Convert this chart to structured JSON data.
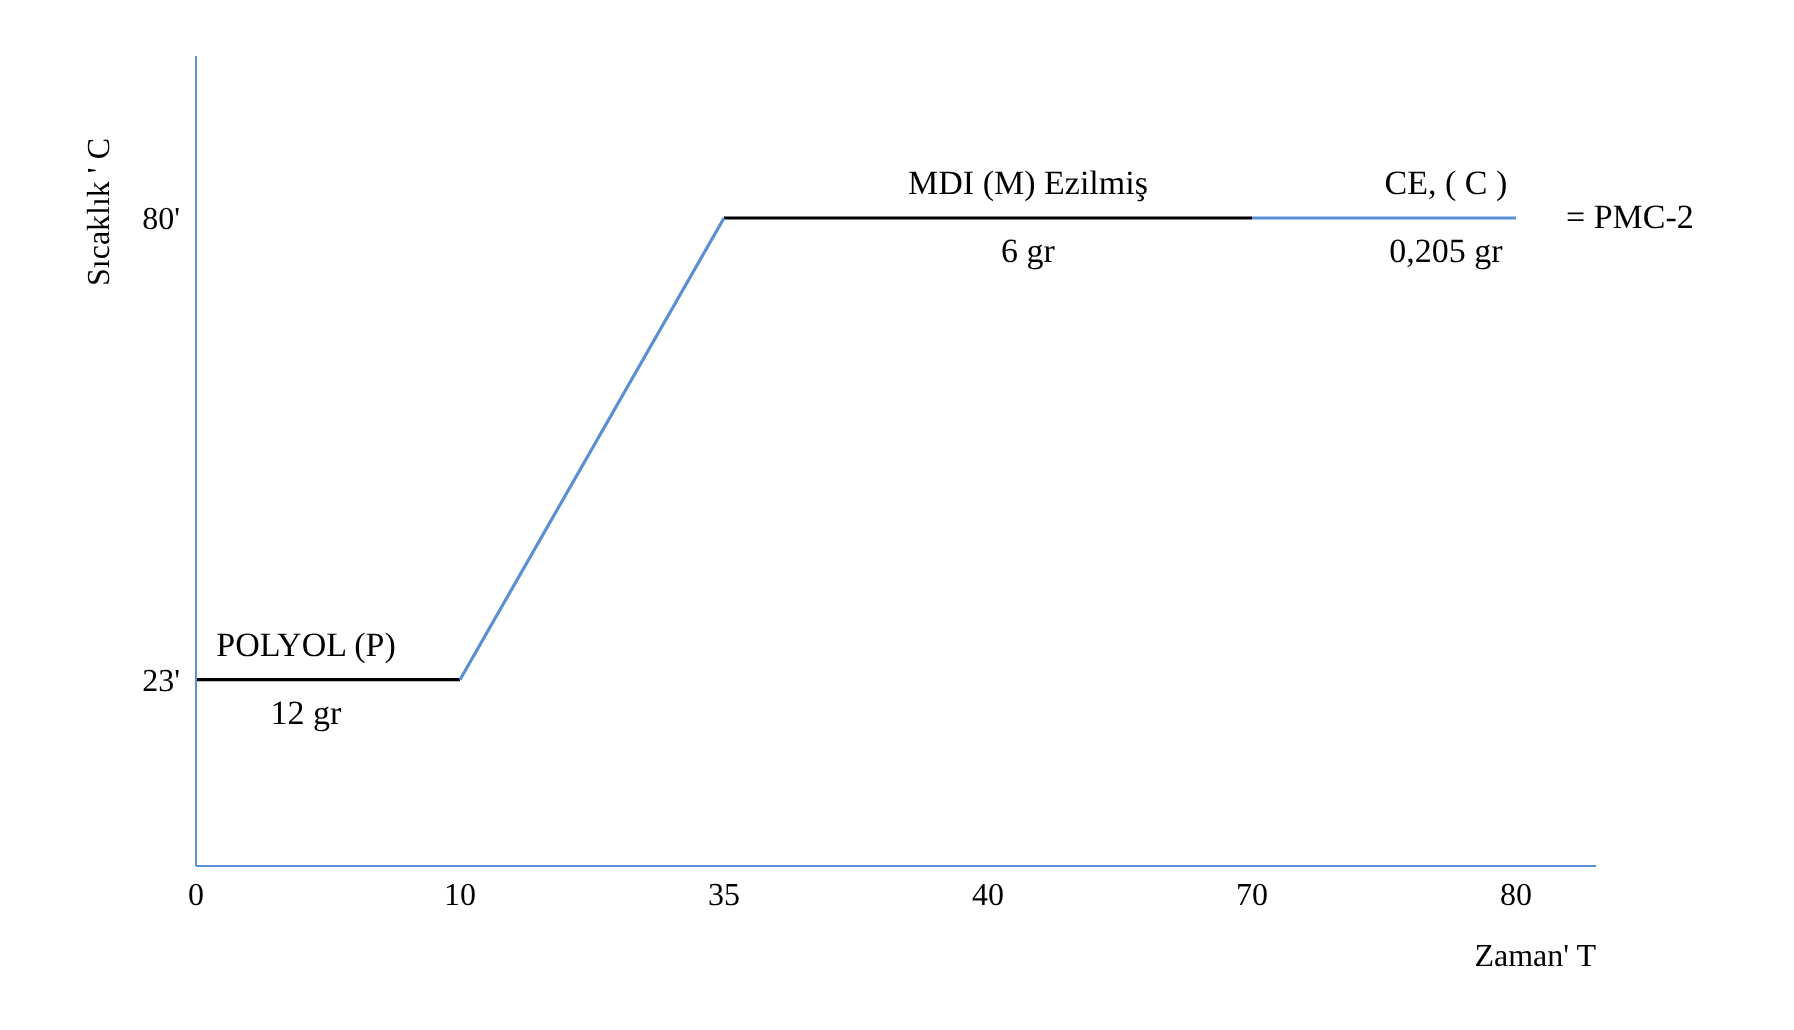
{
  "chart_data": {
    "type": "line",
    "xlabel": "Zaman' T",
    "ylabel": "Sıcaklık ' C",
    "categories": [
      "0",
      "10",
      "35",
      "40",
      "70",
      "80"
    ],
    "series": [
      {
        "color": "#000000",
        "values": [
          23,
          23,
          null,
          80,
          80,
          null
        ]
      },
      {
        "color": "#000000",
        "values": [
          null,
          null,
          80,
          80,
          null,
          null
        ]
      },
      {
        "color": "#5b8fd4",
        "values": [
          null,
          23,
          80,
          null,
          80,
          80
        ]
      }
    ],
    "ylim": [
      0,
      100
    ],
    "yticks": [
      {
        "value": 23,
        "label": "23'"
      },
      {
        "value": 80,
        "label": "80'"
      }
    ],
    "marker": "none",
    "line_style": "solid",
    "annotations": [
      {
        "text": "POLYOL (P)",
        "x": "0",
        "y": 23
      },
      {
        "text": "12 gr",
        "x": "0",
        "y": 23
      },
      {
        "text": "MDI (M) Ezilmiş",
        "x": "40",
        "y": 80
      },
      {
        "text": "6 gr",
        "x": "40",
        "y": 80
      },
      {
        "text": "CE, ( C )",
        "x": "80",
        "y": 80
      },
      {
        "text": "0,205 gr",
        "x": "80",
        "y": 80
      },
      {
        "text": "= PMC-2",
        "x": "80",
        "y": 80
      }
    ]
  }
}
